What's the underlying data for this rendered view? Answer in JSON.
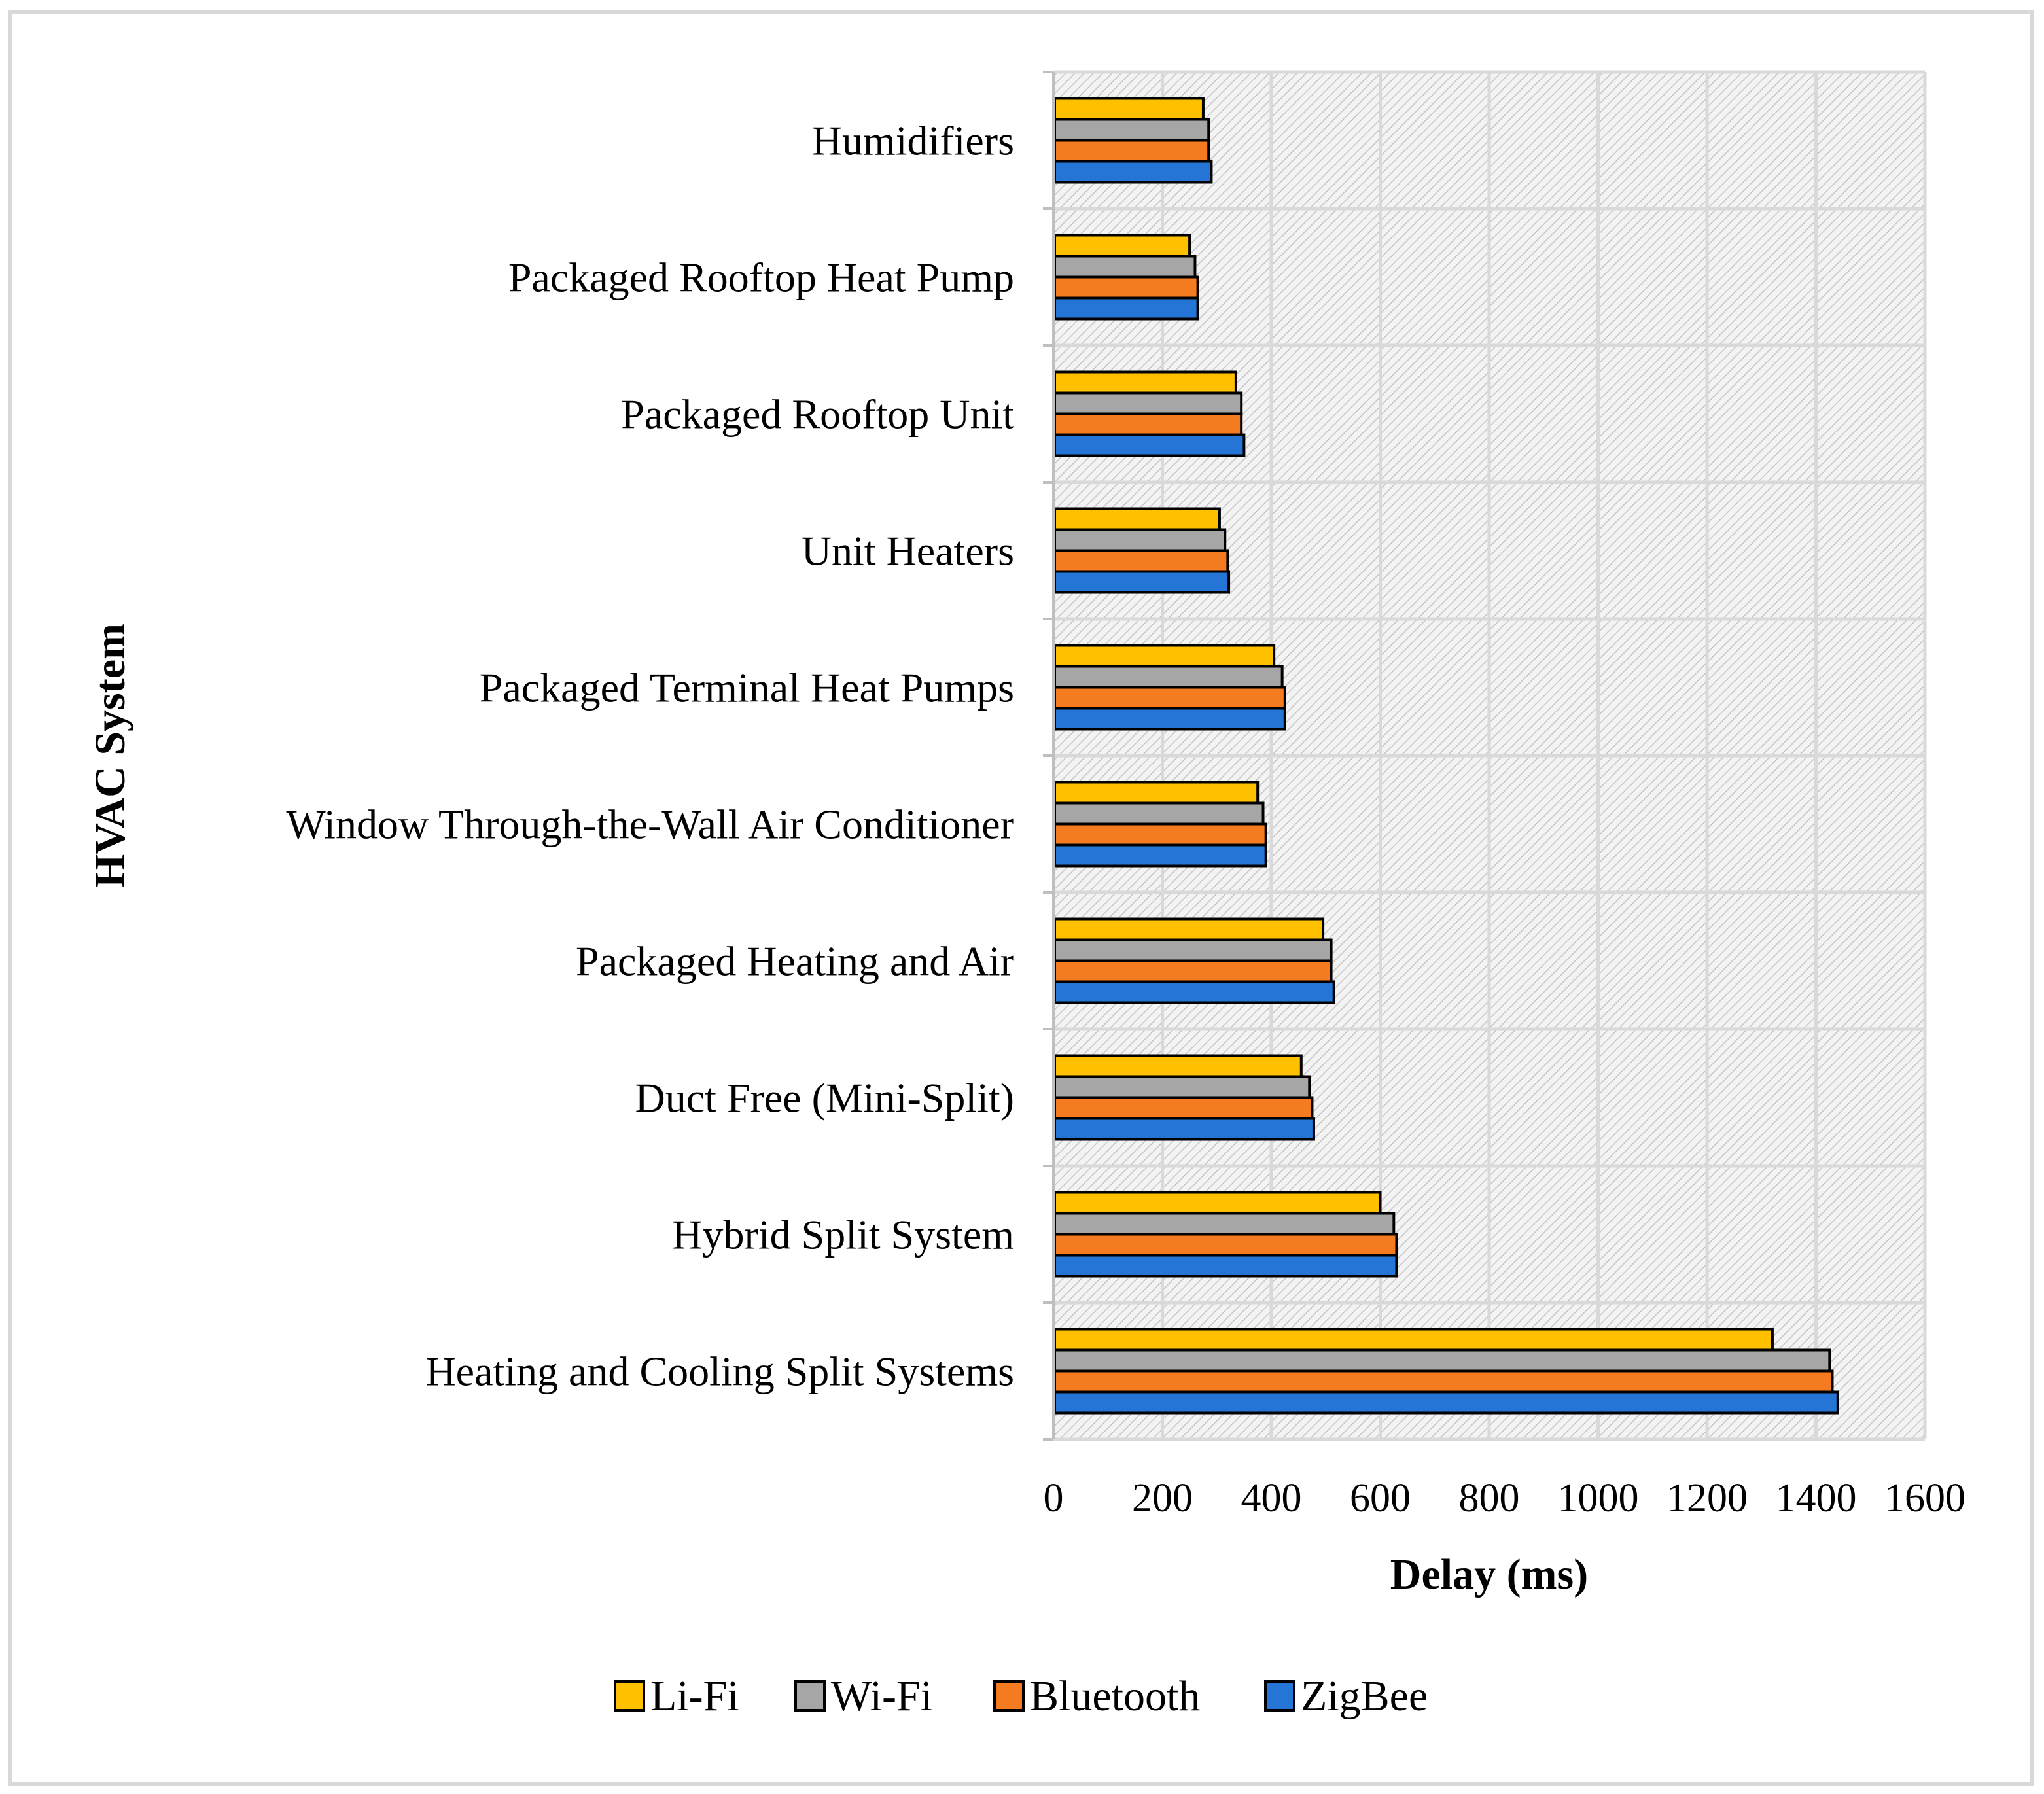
{
  "chart_data": {
    "type": "bar",
    "orientation": "horizontal",
    "title": "",
    "xlabel": "Delay (ms)",
    "ylabel": "HVAC System",
    "xlim": [
      0,
      1600
    ],
    "xticks": [
      0,
      200,
      400,
      600,
      800,
      1000,
      1200,
      1400,
      1600
    ],
    "grid": true,
    "legend_position": "bottom",
    "categories": [
      "Humidifiers",
      "Packaged Rooftop Heat Pump",
      "Packaged Rooftop Unit",
      "Unit Heaters",
      "Packaged Terminal Heat Pumps",
      "Window Through-the-Wall Air Conditioner",
      "Packaged Heating and Air",
      "Duct Free (Mini-Split)",
      "Hybrid Split System",
      "Heating and Cooling Split Systems"
    ],
    "series": [
      {
        "name": "Li-Fi",
        "color": "#ffc000",
        "values": [
          275,
          250,
          335,
          305,
          405,
          375,
          495,
          455,
          600,
          1320
        ]
      },
      {
        "name": "Wi-Fi",
        "color": "#a6a6a6",
        "values": [
          285,
          260,
          345,
          315,
          420,
          385,
          510,
          470,
          625,
          1425
        ]
      },
      {
        "name": "Bluetooth",
        "color": "#f47b20",
        "values": [
          285,
          265,
          345,
          320,
          425,
          390,
          510,
          475,
          630,
          1430
        ]
      },
      {
        "name": "ZigBee",
        "color": "#2475d6",
        "values": [
          290,
          265,
          350,
          322,
          425,
          390,
          515,
          478,
          630,
          1440
        ]
      }
    ]
  }
}
